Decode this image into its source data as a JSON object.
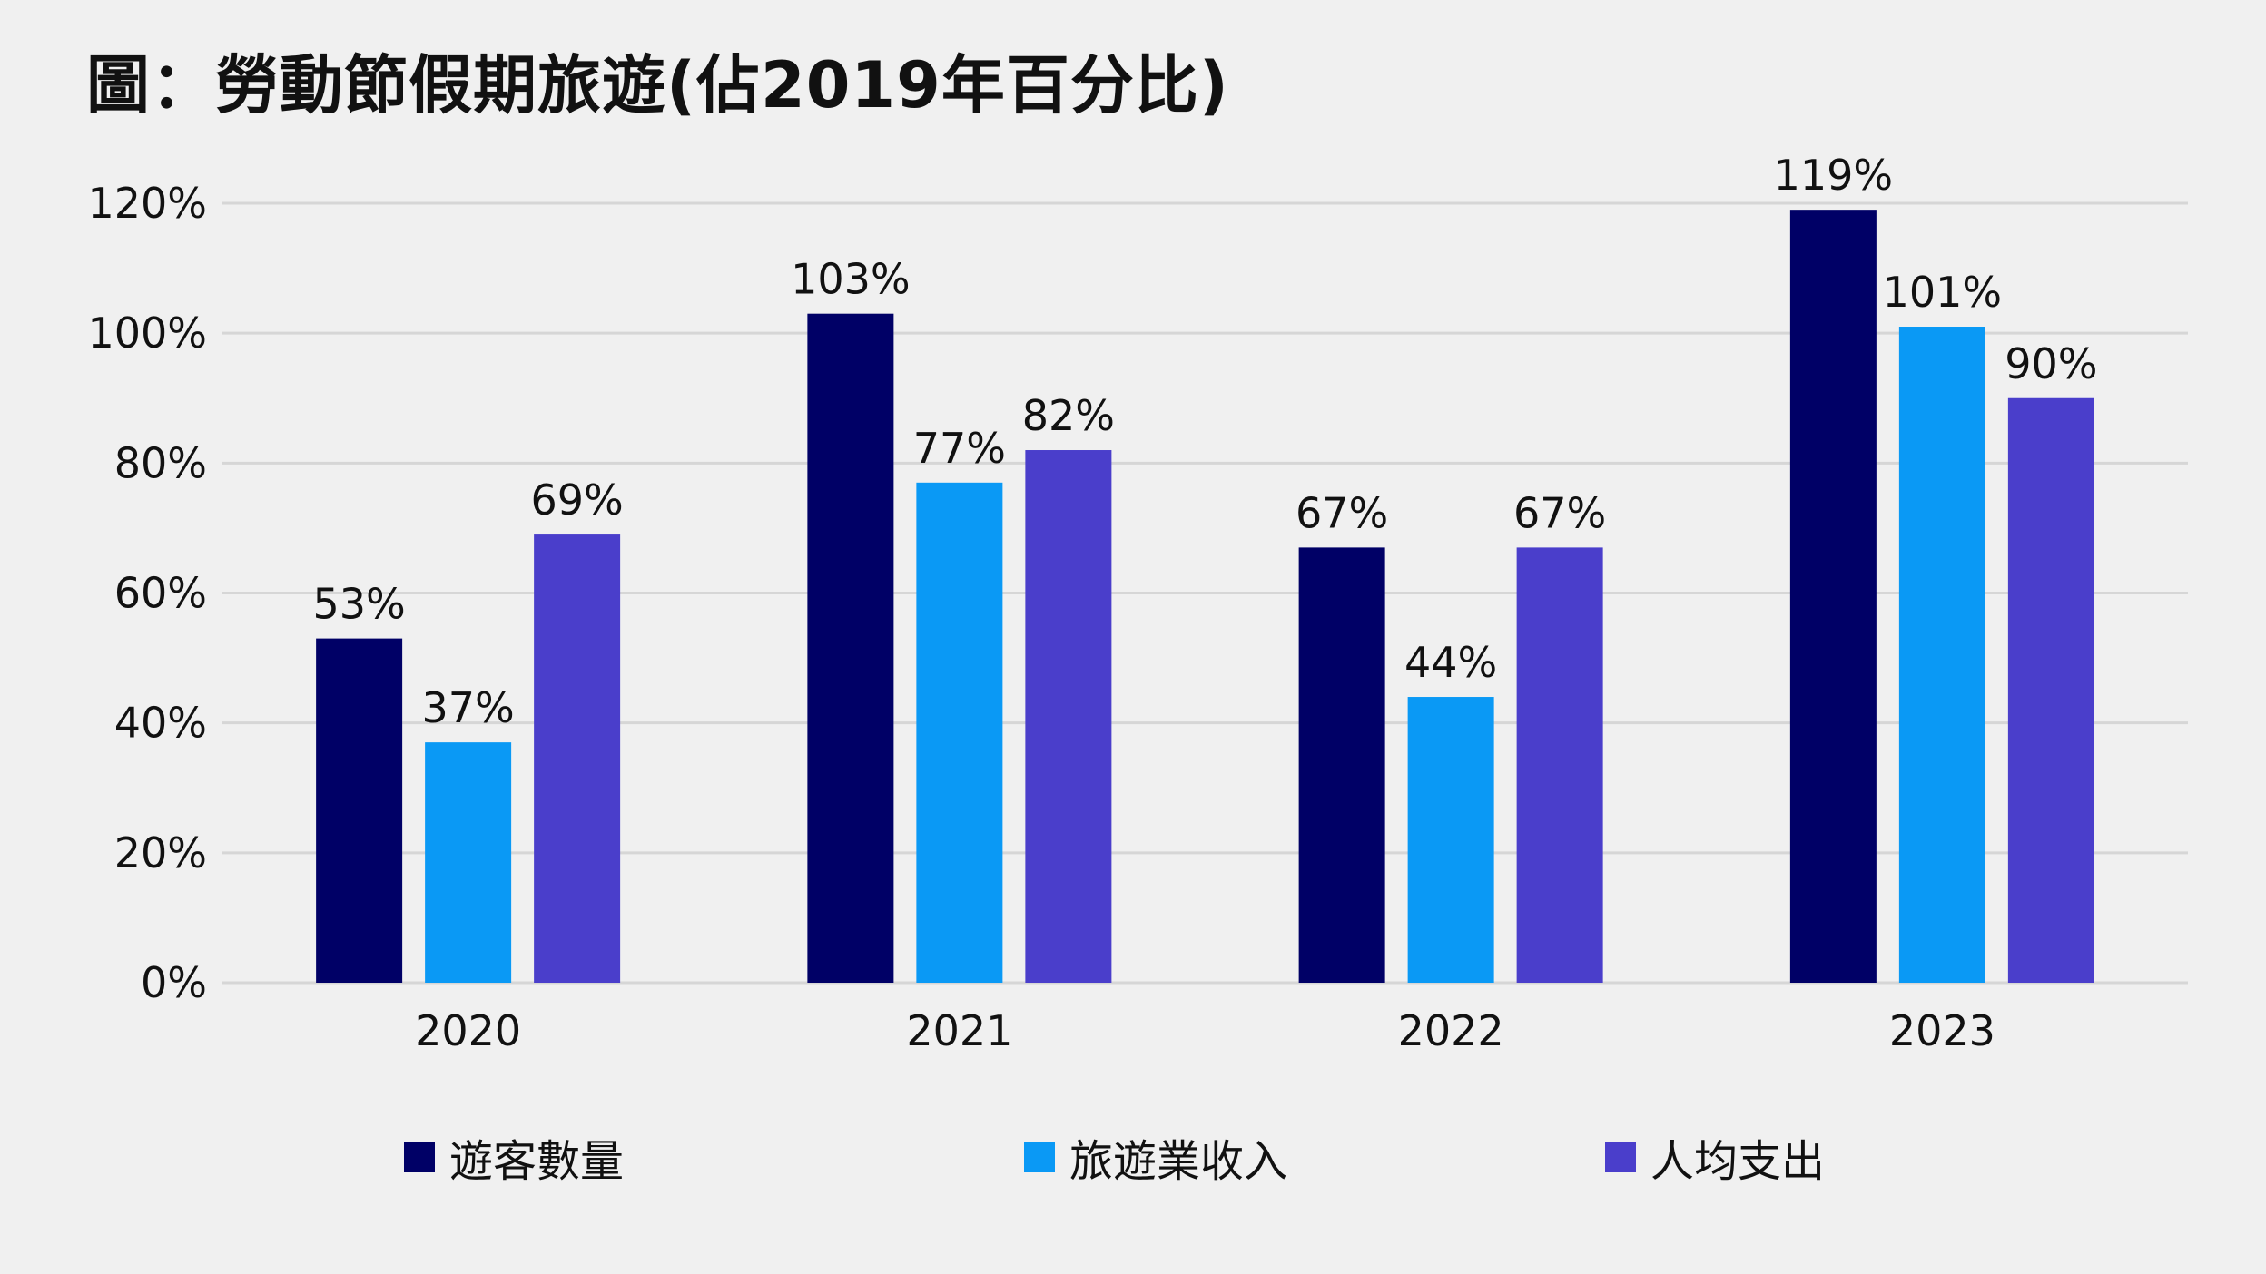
{
  "chart_data": {
    "type": "bar",
    "title": "圖：勞動節假期旅遊(佔2019年百分比)",
    "categories": [
      "2020",
      "2021",
      "2022",
      "2023"
    ],
    "series": [
      {
        "name": "遊客數量",
        "color": "#000066",
        "values": [
          53,
          103,
          67,
          119
        ],
        "labels": [
          "53%",
          "103%",
          "67%",
          "119%"
        ]
      },
      {
        "name": "旅遊業收入",
        "color": "#0a99f5",
        "values": [
          37,
          77,
          44,
          101
        ],
        "labels": [
          "37%",
          "77%",
          "44%",
          "101%"
        ]
      },
      {
        "name": "人均支出",
        "color": "#4a3ecb",
        "values": [
          69,
          82,
          67,
          90
        ],
        "labels": [
          "69%",
          "82%",
          "67%",
          "90%"
        ]
      }
    ],
    "yticks": [
      "0%",
      "20%",
      "40%",
      "60%",
      "80%",
      "100%",
      "120%"
    ],
    "ylim": [
      0,
      120
    ],
    "grid": true,
    "legend": "bottom"
  }
}
